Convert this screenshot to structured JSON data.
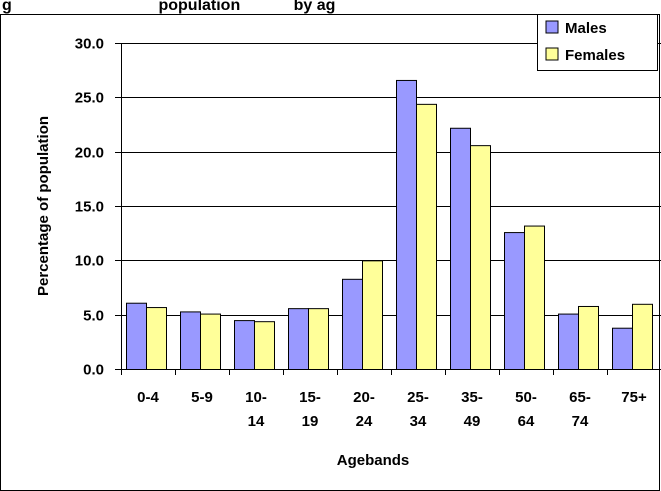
{
  "chart_data": {
    "type": "bar",
    "title": "g                                 population            by ag",
    "xlabel": "Agebands",
    "ylabel": "Percentage of population",
    "categories": [
      [
        "0-4"
      ],
      [
        "5-9"
      ],
      [
        "10-",
        "14"
      ],
      [
        "15-",
        "19"
      ],
      [
        "20-",
        "24"
      ],
      [
        "25-",
        "34"
      ],
      [
        "35-",
        "49"
      ],
      [
        "50-",
        "64"
      ],
      [
        "65-",
        "74"
      ],
      [
        "75+"
      ]
    ],
    "series": [
      {
        "name": "Males",
        "color": "#9999ff",
        "values": [
          6.1,
          5.3,
          4.5,
          5.6,
          8.3,
          26.6,
          22.2,
          12.6,
          5.1,
          3.8
        ]
      },
      {
        "name": "Females",
        "color": "#ffff99",
        "values": [
          5.7,
          5.1,
          4.4,
          5.6,
          10.0,
          24.4,
          20.6,
          13.2,
          5.8,
          6.0
        ]
      }
    ],
    "ylim": [
      0,
      30
    ],
    "yticks": [
      "0.0",
      "5.0",
      "10.0",
      "15.0",
      "20.0",
      "25.0",
      "30.0"
    ],
    "grid": true,
    "legend": "top-right"
  }
}
